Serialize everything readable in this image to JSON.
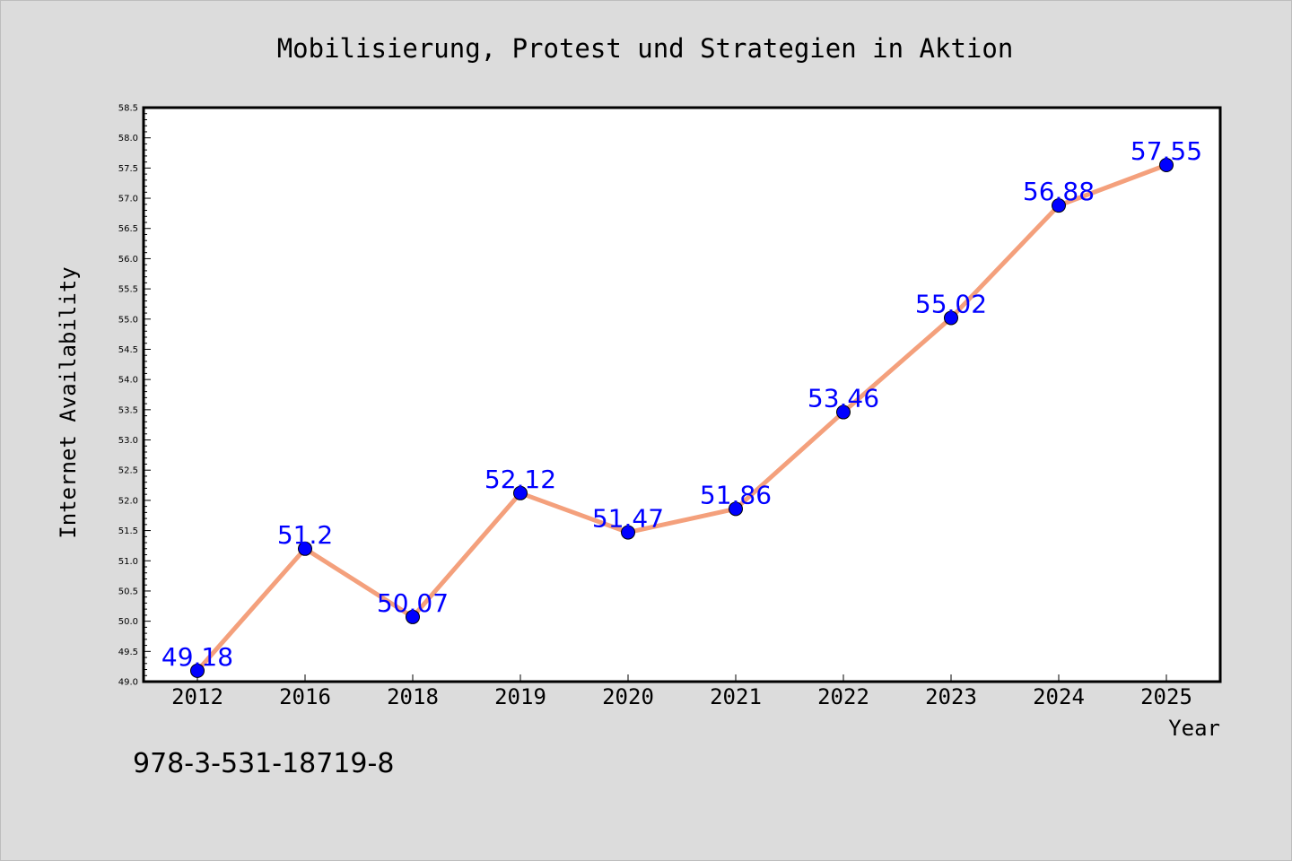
{
  "chart_data": {
    "type": "line",
    "title": "Mobilisierung, Protest und Strategien in Aktion",
    "xlabel": "Year",
    "ylabel": "Internet Availability",
    "categories": [
      "2012",
      "2016",
      "2018",
      "2019",
      "2020",
      "2021",
      "2022",
      "2023",
      "2024",
      "2025"
    ],
    "series": [
      {
        "values": [
          49.18,
          51.2,
          50.07,
          52.12,
          51.47,
          51.86,
          53.46,
          55.02,
          56.88,
          57.55
        ]
      }
    ],
    "data_labels": [
      "49.18",
      "51.2",
      "50.07",
      "52.12",
      "51.47",
      "51.86",
      "53.46",
      "55.02",
      "56.88",
      "57.55"
    ],
    "ylim": [
      49.0,
      58.5
    ],
    "y_tick_labels": [
      "49.0",
      "49.5",
      "50.0",
      "50.5",
      "51.0",
      "51.5",
      "52.0",
      "52.5",
      "53.0",
      "53.5",
      "54.0",
      "54.5",
      "55.0",
      "55.5",
      "56.0",
      "56.5",
      "57.0",
      "57.5",
      "58.0",
      "58.5"
    ],
    "grid": false,
    "colors": {
      "line": "#f4a07c",
      "marker": "#0000ff",
      "data_label": "#0000ff",
      "background": "#dcdcdc",
      "plot_background": "#ffffff"
    }
  },
  "footer": {
    "isbn": "978-3-531-18719-8"
  }
}
